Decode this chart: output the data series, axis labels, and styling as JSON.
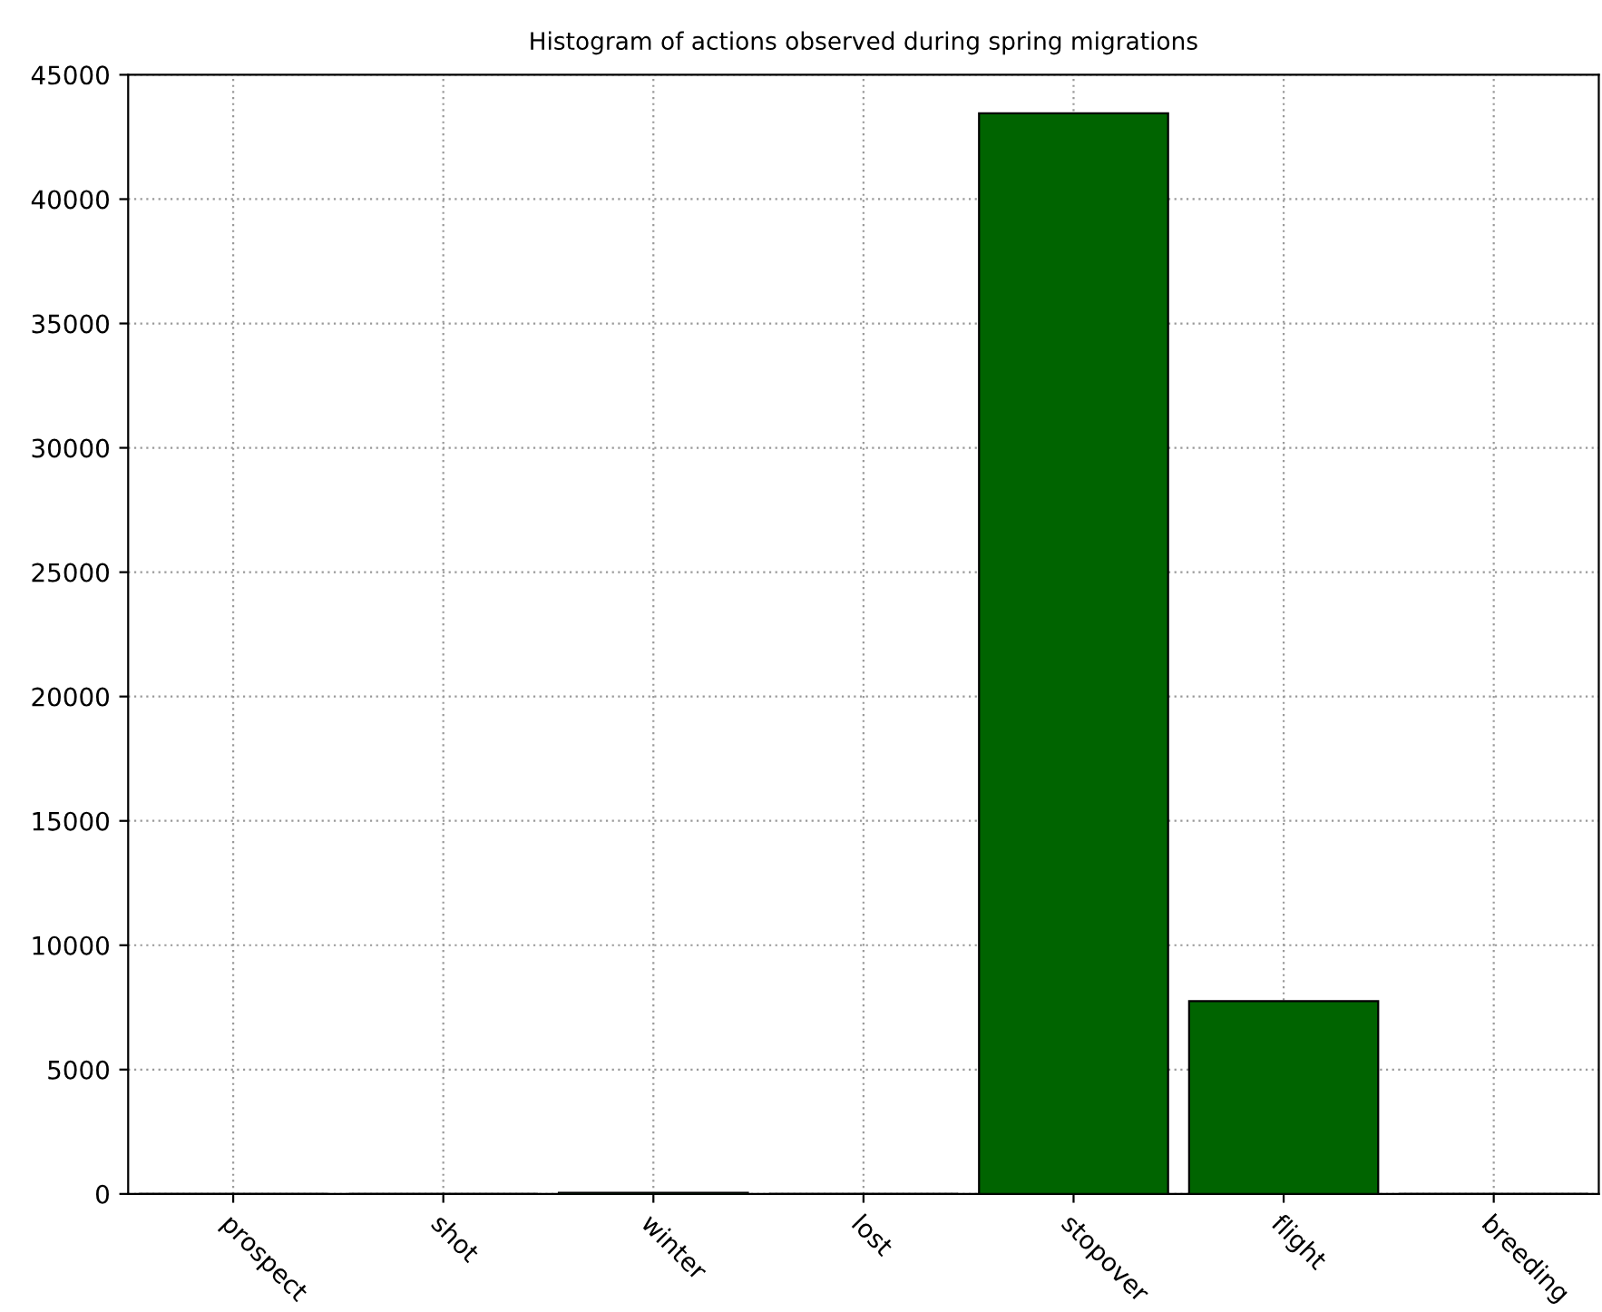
{
  "chart_data": {
    "type": "bar",
    "title": "Histogram of actions observed during spring migrations",
    "categories": [
      "prospect",
      "shot",
      "winter",
      "lost",
      "stopover",
      "flight",
      "breeding"
    ],
    "values": [
      0,
      0,
      50,
      0,
      43450,
      7750,
      0
    ],
    "color": "#006400",
    "ylim": [
      0,
      45000
    ],
    "yticks": [
      0,
      5000,
      10000,
      15000,
      20000,
      25000,
      30000,
      35000,
      40000,
      45000
    ],
    "grid": true
  }
}
